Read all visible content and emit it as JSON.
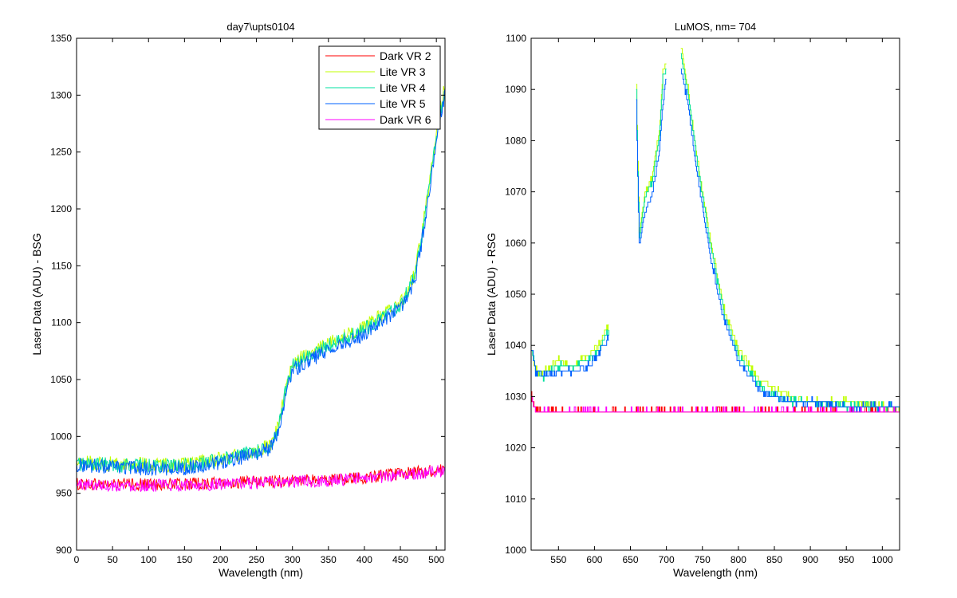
{
  "chart_data": [
    {
      "type": "line",
      "title": "day7\\upts0104",
      "xlabel": "Wavelength (nm)",
      "ylabel": "Laser Data (ADU) - BSG",
      "xlim": [
        0,
        512
      ],
      "ylim": [
        900,
        1350
      ],
      "xticks": [
        "0",
        "50",
        "100",
        "150",
        "200",
        "250",
        "300",
        "350",
        "400",
        "450",
        "500"
      ],
      "yticks": [
        "900",
        "950",
        "1000",
        "1050",
        "1100",
        "1150",
        "1200",
        "1250",
        "1300",
        "1350"
      ],
      "grid": false,
      "legend_position": "top-right",
      "series": [
        {
          "name": "Dark VR 2",
          "color": "#ff0000",
          "x": [
            0,
            50,
            100,
            150,
            200,
            250,
            300,
            350,
            400,
            450,
            500,
            512
          ],
          "y": [
            958,
            958,
            958,
            958,
            959,
            960,
            961,
            962,
            964,
            967,
            970,
            971
          ]
        },
        {
          "name": "Lite VR 3",
          "color": "#c0ff00",
          "x": [
            0,
            50,
            100,
            150,
            200,
            250,
            270,
            280,
            290,
            300,
            350,
            400,
            450,
            470,
            480,
            490,
            500,
            512
          ],
          "y": [
            977,
            976,
            975,
            975,
            980,
            988,
            993,
            1008,
            1040,
            1065,
            1082,
            1096,
            1118,
            1143,
            1180,
            1222,
            1268,
            1310
          ]
        },
        {
          "name": "Lite VR 4",
          "color": "#00e0a0",
          "x": [
            0,
            50,
            100,
            150,
            200,
            250,
            270,
            280,
            290,
            300,
            350,
            400,
            450,
            470,
            480,
            490,
            500,
            512
          ],
          "y": [
            976,
            975,
            974,
            974,
            979,
            987,
            992,
            1006,
            1038,
            1062,
            1080,
            1094,
            1115,
            1140,
            1176,
            1218,
            1265,
            1305
          ]
        },
        {
          "name": "Lite VR 5",
          "color": "#0060ff",
          "x": [
            0,
            50,
            100,
            150,
            200,
            250,
            270,
            280,
            290,
            300,
            350,
            400,
            450,
            470,
            480,
            490,
            500,
            512
          ],
          "y": [
            975,
            973,
            972,
            972,
            977,
            985,
            990,
            1004,
            1035,
            1058,
            1076,
            1090,
            1112,
            1136,
            1172,
            1214,
            1262,
            1300
          ]
        },
        {
          "name": "Dark VR 6",
          "color": "#ff00ff",
          "x": [
            0,
            50,
            100,
            150,
            200,
            250,
            300,
            350,
            400,
            450,
            500,
            512
          ],
          "y": [
            958,
            957,
            957,
            957,
            958,
            959,
            960,
            961,
            963,
            966,
            969,
            970
          ]
        }
      ]
    },
    {
      "type": "line",
      "title": "LuMOS, nm= 704",
      "xlabel": "Wavelength (nm)",
      "ylabel": "Laser Data (ADU) - RSG",
      "xlim": [
        512,
        1024
      ],
      "ylim": [
        1000,
        1100
      ],
      "xticks": [
        "550",
        "600",
        "650",
        "700",
        "750",
        "800",
        "850",
        "900",
        "950",
        "1000"
      ],
      "yticks": [
        "1000",
        "1010",
        "1020",
        "1030",
        "1040",
        "1050",
        "1060",
        "1070",
        "1080",
        "1090",
        "1100"
      ],
      "grid": false,
      "series": [
        {
          "color": "#ff0000",
          "x": [
            512,
            515,
            520,
            600,
            700,
            800,
            900,
            1000,
            1024
          ],
          "y": [
            1030,
            1028,
            1027,
            1027,
            1027,
            1027,
            1027,
            1027,
            1027
          ]
        },
        {
          "color": "#c0ff00",
          "x": [
            512,
            518,
            530,
            550,
            570,
            590,
            605,
            620,
            null,
            658,
            660,
            662,
            670,
            680,
            690,
            695,
            700,
            null,
            720,
            730,
            740,
            760,
            780,
            800,
            830,
            870,
            900,
            950,
            1000,
            1024
          ],
          "y": [
            1040,
            1035,
            1035,
            1037,
            1036,
            1038,
            1040,
            1044,
            null,
            1091,
            1076,
            1062,
            1070,
            1073,
            1082,
            1094,
            1095,
            null,
            1098,
            1090,
            1079,
            1061,
            1047,
            1039,
            1033,
            1030,
            1029,
            1029,
            1028,
            1028
          ]
        },
        {
          "color": "#00e0a0",
          "x": [
            512,
            518,
            530,
            550,
            570,
            590,
            605,
            620,
            null,
            658,
            660,
            662,
            670,
            680,
            690,
            695,
            700,
            null,
            720,
            730,
            740,
            760,
            780,
            800,
            830,
            870,
            900,
            950,
            1000,
            1024
          ],
          "y": [
            1040,
            1035,
            1034,
            1036,
            1036,
            1037,
            1039,
            1043,
            null,
            1090,
            1075,
            1061,
            1069,
            1072,
            1081,
            1093,
            1094,
            null,
            1097,
            1089,
            1078,
            1060,
            1046,
            1038,
            1032,
            1029,
            1029,
            1028,
            1028,
            1028
          ]
        },
        {
          "color": "#0060ff",
          "x": [
            512,
            518,
            530,
            550,
            570,
            590,
            605,
            620,
            null,
            658,
            660,
            662,
            670,
            680,
            690,
            695,
            700,
            null,
            720,
            730,
            740,
            760,
            780,
            800,
            830,
            870,
            900,
            950,
            1000,
            1024
          ],
          "y": [
            1040,
            1035,
            1034,
            1035,
            1035,
            1036,
            1038,
            1042,
            null,
            1088,
            1072,
            1060,
            1066,
            1070,
            1078,
            1088,
            1092,
            null,
            1094,
            1087,
            1076,
            1058,
            1045,
            1037,
            1031,
            1029,
            1029,
            1028,
            1028,
            1028
          ]
        },
        {
          "color": "#ff00ff",
          "x": [
            512,
            515,
            520,
            600,
            700,
            800,
            900,
            1000,
            1024
          ],
          "y": [
            1029,
            1028,
            1027,
            1027,
            1027,
            1027,
            1027,
            1027,
            1027
          ]
        }
      ]
    }
  ]
}
